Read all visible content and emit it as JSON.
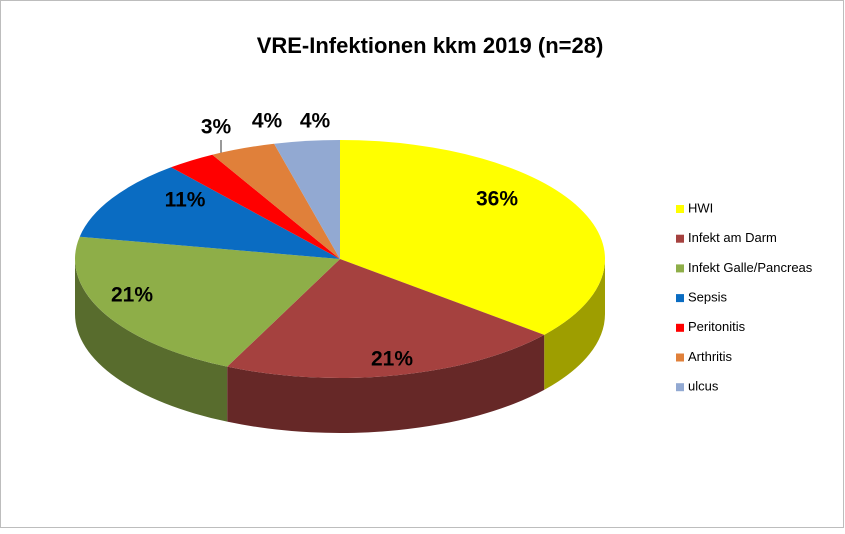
{
  "chart_data": {
    "type": "pie",
    "title": "VRE-Infektionen kkm 2019 (n=28)",
    "categories": [
      "HWI",
      "Infekt am Darm",
      "Infekt Galle/Pancreas",
      "Sepsis",
      "Peritonitis",
      "Arthritis",
      "ulcus"
    ],
    "values": [
      36,
      21,
      21,
      11,
      3,
      4,
      4
    ],
    "value_labels": [
      "36%",
      "21%",
      "21%",
      "11%",
      "3%",
      "4%",
      "4%"
    ],
    "colors": [
      "#FFFF00",
      "#A5413F",
      "#8EAE48",
      "#0A6CC2",
      "#FF0000",
      "#E0803A",
      "#92A9D2"
    ],
    "legend": "right"
  }
}
